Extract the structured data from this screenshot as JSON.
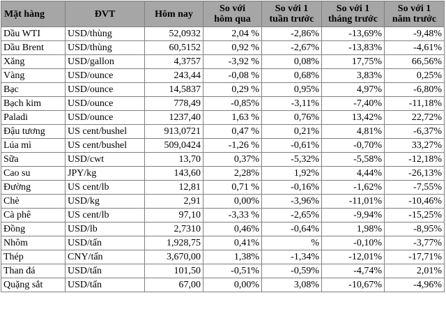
{
  "headers": [
    "Mặt hàng",
    "ĐVT",
    "Hôm nay",
    "So với\nhôm qua",
    "So với 1\ntuần trước",
    "So với 1\ntháng trước",
    "So với 1\nnăm trước"
  ],
  "rows": [
    [
      "Dầu WTI",
      "USD/thùng",
      "52,0932",
      "2,04 %",
      "-2,86%",
      "-13,69%",
      "-9,48%"
    ],
    [
      "Dầu Brent",
      "USD/thùng",
      "60,5152",
      "0,92 %",
      "-2,67%",
      "-13,83%",
      "-4,61%"
    ],
    [
      "Xăng",
      "USD/gallon",
      "4,3757",
      "-3,92 %",
      "0,08%",
      "17,75%",
      "66,56%"
    ],
    [
      "Vàng",
      "USD/ounce",
      "243,44",
      "-0,08 %",
      "0,68%",
      "3,83%",
      "0,25%"
    ],
    [
      "Bạc",
      "USD/ounce",
      "14,5837",
      "0,29 %",
      "0,95%",
      "4,97%",
      "-6,80%"
    ],
    [
      "Bạch kim",
      "USD/ounce",
      "778,49",
      "-0,85%",
      "-3,11%",
      "-7,40%",
      "-11,18%"
    ],
    [
      "Paladi",
      "USD/ounce",
      "1237,40",
      "1,63 %",
      "0,76%",
      "13,42%",
      "22,72%"
    ],
    [
      "Đậu tương",
      "US cent/bushel",
      "913,0721",
      "0,47 %",
      "0,21%",
      "4,81%",
      "-6,37%"
    ],
    [
      "Lúa mì",
      "US cent/bushel",
      "509,0424",
      "-1,26 %",
      "-0,61%",
      "-0,70%",
      "33,27%"
    ],
    [
      "Sữa",
      "USD/cwt",
      "13,70",
      "0,37%",
      "-5,32%",
      "-5,58%",
      "-12,18%"
    ],
    [
      "Cao su",
      "JPY/kg",
      "143,60",
      "2,28%",
      "1,92%",
      "4,44%",
      "-26,13%"
    ],
    [
      "Đường",
      "US cent/lb",
      "12,81",
      "0,71 %",
      "-0,16%",
      "-1,62%",
      "-7,55%"
    ],
    [
      "Chè",
      "USD/kg",
      "2,91",
      "0,00%",
      "-3,96%",
      "-11,01%",
      "-10,46%"
    ],
    [
      "Cà phê",
      "US cent/lb",
      "97,10",
      "-3,33 %",
      "-2,65%",
      "-9,94%",
      "-15,25%"
    ],
    [
      "Đồng",
      "USD/lb",
      "2,7310",
      "0,46%",
      "-0,64%",
      "1,98%",
      "-8,95%"
    ],
    [
      "Nhôm",
      "USD/tấn",
      "1,928,75",
      "0,41%",
      "%",
      "-0,10%",
      "-3,77%"
    ],
    [
      "Thép",
      "CNY/tấn",
      "3,670,00",
      "1,38%",
      "-1,34%",
      "-12,01%",
      "-17,71%"
    ],
    [
      "Than đá",
      "USD/tấn",
      "101,50",
      "-0,51%",
      "-0,59%",
      "-4,74%",
      "2,01%"
    ],
    [
      "Quặng sắt",
      "USD/tấn",
      "67,00",
      "0,00%",
      "3,08%",
      "-10,67%",
      "-4,96%"
    ]
  ]
}
